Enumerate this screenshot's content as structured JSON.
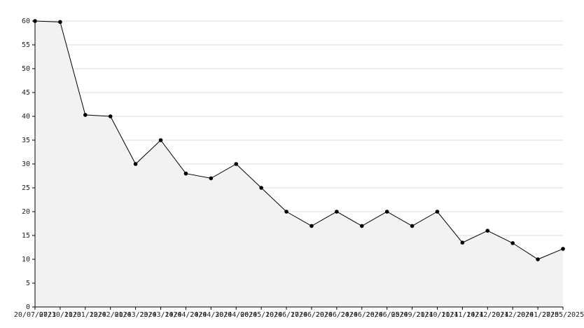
{
  "chart_data": {
    "type": "line",
    "categories": [
      "20/07/2023",
      "07/10/2023",
      "11/01/2024",
      "12/02/2024",
      "01/03/2024",
      "23/03/2024",
      "14/04/2024",
      "24/04/2024",
      "30/04/2024",
      "06/05/2024",
      "10/06/2024",
      "17/06/2024",
      "20/06/2024",
      "24/06/2024",
      "26/06/2024",
      "05/09/2024",
      "21/10/2024",
      "11/11/2024",
      "14/12/2024",
      "20/12/2024",
      "20/01/2025",
      "27/05/2025"
    ],
    "values": [
      60,
      59.8,
      40.3,
      40,
      30,
      35,
      28,
      27,
      30,
      25,
      20,
      17,
      20,
      17,
      20,
      17,
      20,
      13.5,
      16,
      13.4,
      10,
      12.2
    ],
    "color": "#000000",
    "fill": "#f2f2f2",
    "ylim": [
      0,
      60
    ],
    "yticks": [
      0,
      5,
      10,
      15,
      20,
      25,
      30,
      35,
      40,
      45,
      50,
      55,
      60
    ],
    "grid": true
  }
}
